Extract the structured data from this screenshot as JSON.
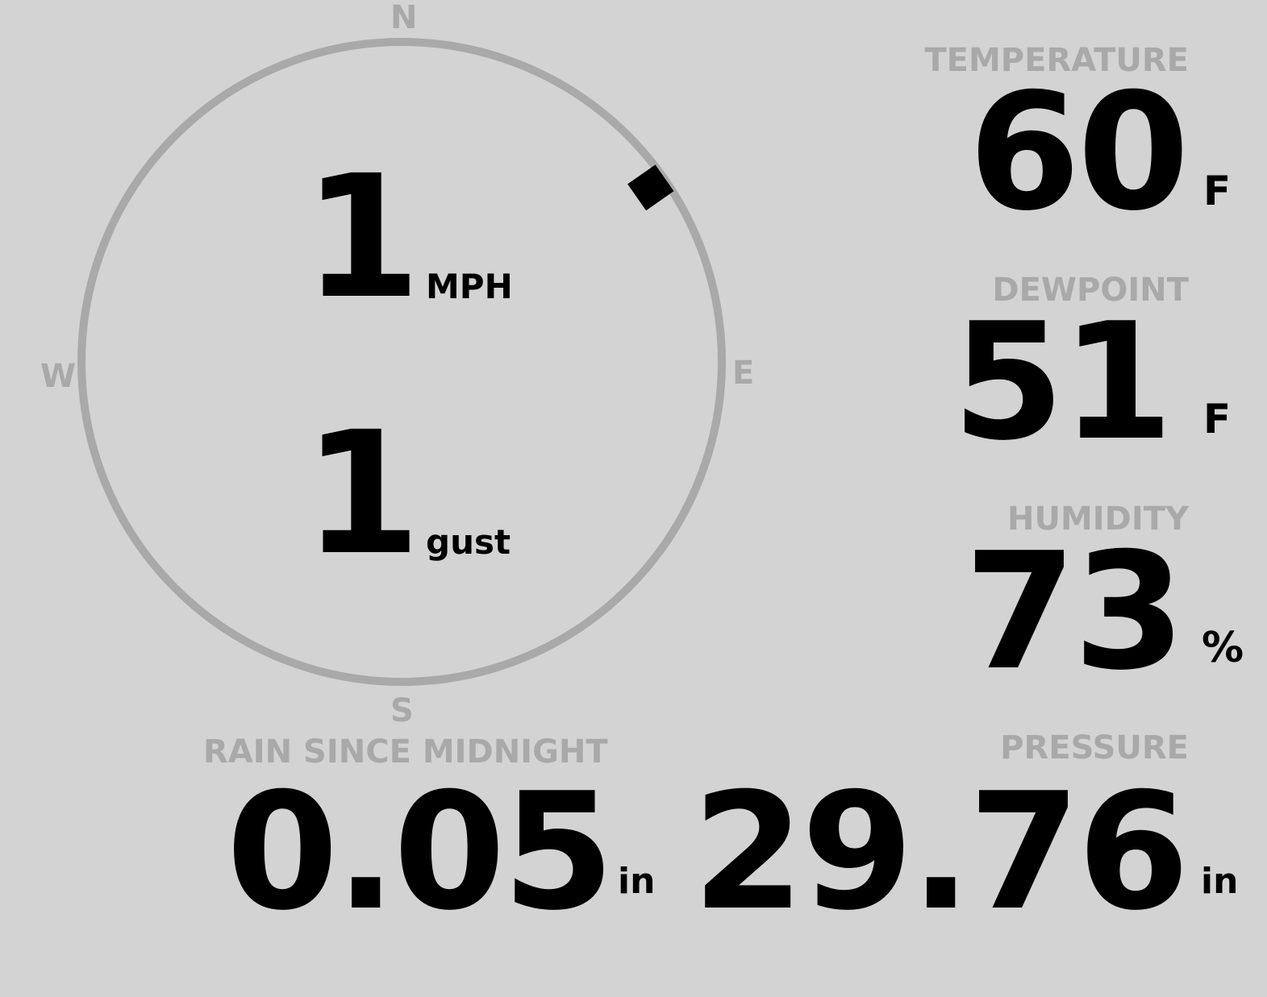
{
  "wind": {
    "speed": "1",
    "speed_unit": "MPH",
    "gust": "1",
    "gust_unit": "gust",
    "direction_deg": 55,
    "compass": {
      "n": "N",
      "s": "S",
      "e": "E",
      "w": "W"
    }
  },
  "temperature": {
    "label": "TEMPERATURE",
    "value": "60",
    "unit": "F"
  },
  "dewpoint": {
    "label": "DEWPOINT",
    "value": "51",
    "unit": "F"
  },
  "humidity": {
    "label": "HUMIDITY",
    "value": "73",
    "unit": "%"
  },
  "rain": {
    "label": "RAIN SINCE MIDNIGHT",
    "value": "0.05",
    "unit": "in"
  },
  "pressure": {
    "label": "PRESSURE",
    "value": "29.76",
    "unit": "in"
  },
  "colors": {
    "background": "#d3d3d3",
    "label": "#a9a9a9",
    "value": "#000000"
  }
}
